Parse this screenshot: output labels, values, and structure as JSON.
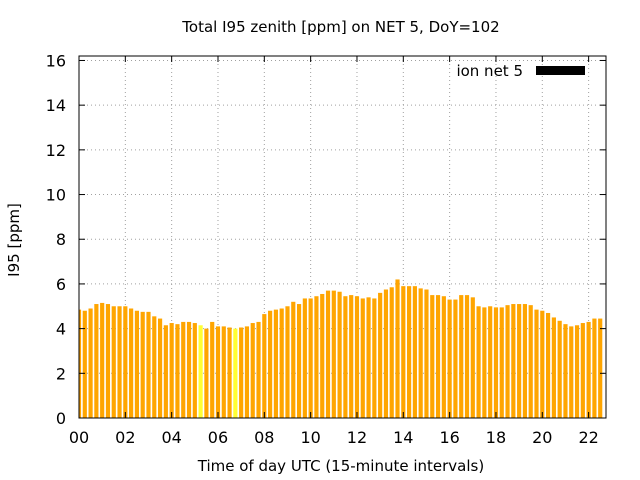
{
  "chart_data": {
    "type": "bar",
    "title": "Total I95 zenith [ppm] on NET 5, DoY=102",
    "xlabel": "Time of day UTC (15-minute intervals)",
    "ylabel": "I95 [ppm]",
    "xlim": [
      0,
      22.75
    ],
    "ylim": [
      0,
      16.2
    ],
    "x_ticks": [
      "00",
      "02",
      "04",
      "06",
      "08",
      "10",
      "12",
      "14",
      "16",
      "18",
      "20",
      "22"
    ],
    "x_tick_values": [
      0,
      2,
      4,
      6,
      8,
      10,
      12,
      14,
      16,
      18,
      20,
      22
    ],
    "y_ticks": [
      0,
      2,
      4,
      6,
      8,
      10,
      12,
      14,
      16
    ],
    "grid": true,
    "legend": {
      "position": "top-right"
    },
    "interval_hours": 0.25,
    "series": [
      {
        "name": "ion net 5",
        "color": "#ffa500",
        "legend_color": "#000000",
        "highlight_color": "#ffff33",
        "highlight_indices": [
          21,
          27
        ],
        "values": [
          4.85,
          4.8,
          4.9,
          5.1,
          5.15,
          5.1,
          5.0,
          5.0,
          5.0,
          4.9,
          4.8,
          4.75,
          4.75,
          4.55,
          4.45,
          4.15,
          4.25,
          4.2,
          4.3,
          4.3,
          4.25,
          4.15,
          4.0,
          4.3,
          4.1,
          4.1,
          4.05,
          4.0,
          4.05,
          4.1,
          4.25,
          4.3,
          4.65,
          4.8,
          4.85,
          4.9,
          5.0,
          5.2,
          5.1,
          5.35,
          5.35,
          5.45,
          5.55,
          5.7,
          5.7,
          5.65,
          5.45,
          5.5,
          5.45,
          5.35,
          5.4,
          5.35,
          5.6,
          5.75,
          5.85,
          6.2,
          5.9,
          5.9,
          5.9,
          5.8,
          5.75,
          5.5,
          5.5,
          5.45,
          5.3,
          5.3,
          5.5,
          5.5,
          5.4,
          5.0,
          4.95,
          5.0,
          4.95,
          4.95,
          5.05,
          5.1,
          5.1,
          5.1,
          5.05,
          4.85,
          4.8,
          4.7,
          4.5,
          4.35,
          4.2,
          4.1,
          4.15,
          4.25,
          4.3,
          4.45,
          4.45
        ]
      }
    ]
  }
}
